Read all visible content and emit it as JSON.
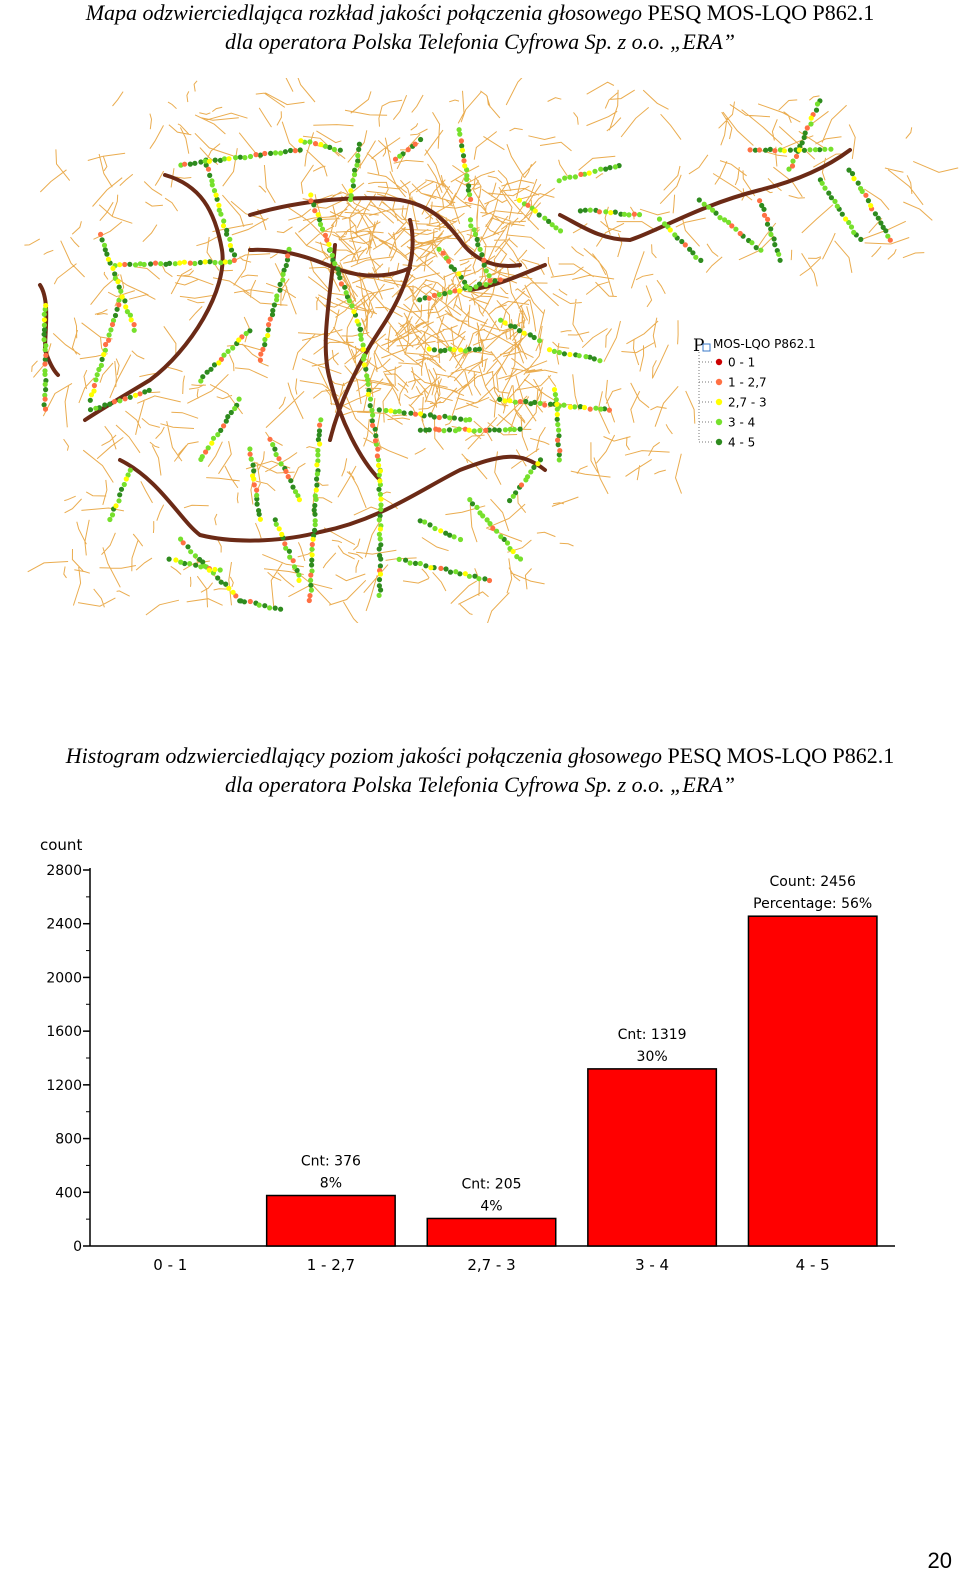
{
  "map": {
    "caption": {
      "line1_italic": "Mapa odzwierciedlająca rozkład jakości połączenia głosowego ",
      "line1_roman": "PESQ MOS-LQO P862.1",
      "line2_italic": "dla operatora Polska Telefonia Cyfrowa Sp. z o.o. „ERA”"
    },
    "legend": {
      "title": "MOS-LQO P862.1",
      "layer_letter": "P",
      "items": [
        {
          "label": "0 - 1",
          "color": "#cc0000"
        },
        {
          "label": "1 - 2,7",
          "color": "#ff7043"
        },
        {
          "label": "2,7 - 3",
          "color": "#ffff00"
        },
        {
          "label": "3 - 4",
          "color": "#76e02c"
        },
        {
          "label": "4 - 5",
          "color": "#2e8b1e"
        }
      ]
    },
    "colors": {
      "streets": "#e8a33c",
      "highway": "#6b2a16",
      "good": "#2e8b1e",
      "ok": "#76e02c",
      "fair": "#ffff00",
      "poor": "#ff7043",
      "bad": "#cc0000"
    }
  },
  "histogram": {
    "caption": {
      "line1_italic": "Histogram odzwierciedlający poziom jakości połączenia głosowego ",
      "line1_roman": "PESQ MOS-LQO P862.1",
      "line2_italic": "dla operatora Polska Telefonia Cyfrowa Sp. z o.o. „ERA”"
    }
  },
  "chart_data": {
    "type": "bar",
    "ylabel": "count",
    "ylim": [
      0,
      2800
    ],
    "yticks": [
      0,
      400,
      800,
      1200,
      1600,
      2000,
      2400,
      2800
    ],
    "categories": [
      "0 - 1",
      "1 - 2,7",
      "2,7 - 3",
      "3 - 4",
      "4 - 5"
    ],
    "values": [
      0,
      376,
      205,
      1319,
      2456
    ],
    "labels": [
      [],
      [
        "Cnt: 376",
        "8%"
      ],
      [
        "Cnt: 205",
        "4%"
      ],
      [
        "Cnt: 1319",
        "30%"
      ],
      [
        "Count: 2456",
        "Percentage: 56%"
      ]
    ],
    "bar_color": "#ff0000",
    "grid": false
  },
  "page_number": "20"
}
